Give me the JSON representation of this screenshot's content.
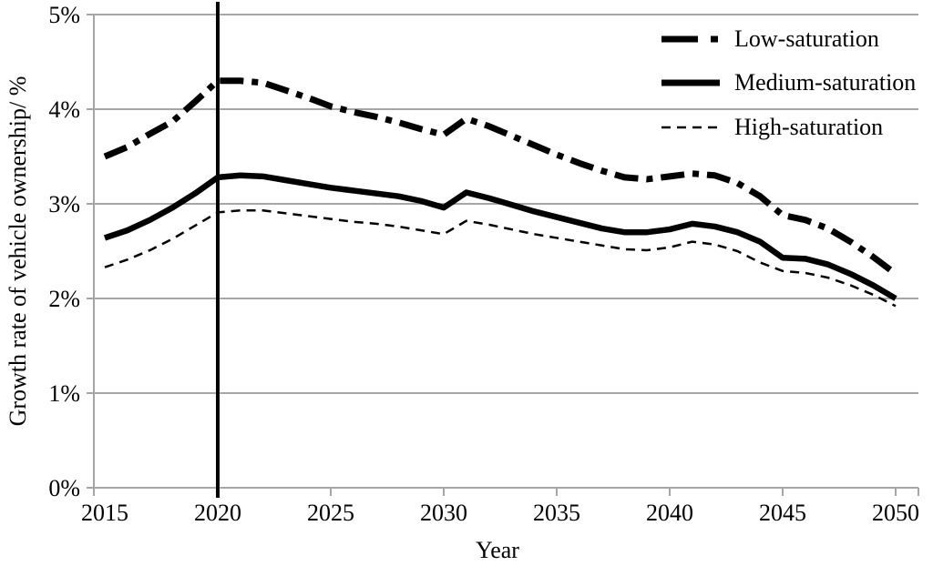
{
  "chart_data": {
    "type": "line",
    "title": "",
    "xlabel": "Year",
    "ylabel": "Growth rate of vehicle ownership/ %",
    "x": [
      2015,
      2016,
      2017,
      2018,
      2019,
      2020,
      2021,
      2022,
      2023,
      2024,
      2025,
      2026,
      2027,
      2028,
      2029,
      2030,
      2031,
      2032,
      2033,
      2034,
      2035,
      2036,
      2037,
      2038,
      2039,
      2040,
      2041,
      2042,
      2043,
      2044,
      2045,
      2046,
      2047,
      2048,
      2049,
      2050
    ],
    "xticks": [
      2015,
      2020,
      2025,
      2030,
      2035,
      2040,
      2045,
      2050
    ],
    "yticks": [
      0,
      1,
      2,
      3,
      4,
      5
    ],
    "ytick_labels": [
      "0%",
      "1%",
      "2%",
      "3%",
      "4%",
      "5%"
    ],
    "xlim": [
      2014.5,
      2051
    ],
    "ylim": [
      0,
      5
    ],
    "grid": "horizontal",
    "legend_position": "top-right",
    "series": [
      {
        "name": "Low-saturation",
        "style": "thick-dash-dot",
        "values": [
          3.5,
          3.6,
          3.74,
          3.87,
          4.08,
          4.3,
          4.3,
          4.28,
          4.2,
          4.12,
          4.03,
          3.97,
          3.92,
          3.86,
          3.79,
          3.73,
          3.9,
          3.82,
          3.72,
          3.62,
          3.52,
          3.43,
          3.35,
          3.28,
          3.26,
          3.29,
          3.32,
          3.3,
          3.22,
          3.08,
          2.88,
          2.83,
          2.74,
          2.6,
          2.44,
          2.26
        ]
      },
      {
        "name": "Medium-saturation",
        "style": "thick-solid",
        "values": [
          2.64,
          2.72,
          2.83,
          2.96,
          3.11,
          3.28,
          3.3,
          3.29,
          3.25,
          3.21,
          3.17,
          3.14,
          3.11,
          3.08,
          3.03,
          2.96,
          3.12,
          3.06,
          2.99,
          2.92,
          2.86,
          2.8,
          2.74,
          2.7,
          2.7,
          2.73,
          2.79,
          2.76,
          2.7,
          2.6,
          2.43,
          2.42,
          2.36,
          2.26,
          2.14,
          2.0
        ]
      },
      {
        "name": "High-saturation",
        "style": "thin-dashed",
        "values": [
          2.33,
          2.41,
          2.51,
          2.63,
          2.77,
          2.91,
          2.93,
          2.93,
          2.9,
          2.87,
          2.84,
          2.81,
          2.79,
          2.76,
          2.72,
          2.68,
          2.82,
          2.78,
          2.73,
          2.68,
          2.64,
          2.6,
          2.56,
          2.52,
          2.51,
          2.54,
          2.6,
          2.57,
          2.5,
          2.38,
          2.29,
          2.27,
          2.22,
          2.14,
          2.04,
          1.92
        ]
      }
    ],
    "annotations": [
      {
        "type": "vline",
        "x": 2020
      }
    ],
    "colors": {
      "line": "#000000",
      "grid": "#a6a6a6",
      "axis": "#a6a6a6",
      "vline": "#000000",
      "background": "#ffffff"
    }
  }
}
